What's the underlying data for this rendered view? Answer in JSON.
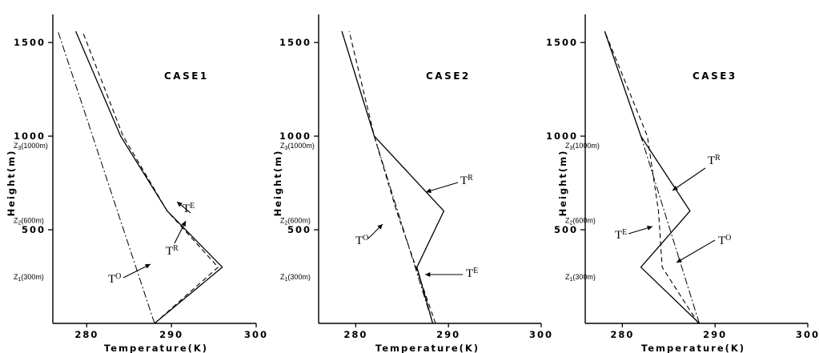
{
  "chart_data": [
    {
      "type": "line",
      "title": "CASE1",
      "xlabel": "Temperature(K)",
      "ylabel": "Height(m)",
      "xlim": [
        276,
        300
      ],
      "ylim": [
        0,
        1650
      ],
      "xticks": [
        280,
        290,
        300
      ],
      "yticks": [
        500,
        1000,
        1500
      ],
      "level_labels": [
        {
          "text": "Z3(1000m)",
          "y": 1000
        },
        {
          "text": "Z2(600m)",
          "y": 600
        },
        {
          "text": "Z1(300m)",
          "y": 300
        }
      ],
      "series": [
        {
          "name": "TR",
          "style": "solid",
          "x": [
            288,
            296,
            289.5,
            284,
            278.7
          ],
          "y": [
            0,
            300,
            600,
            1000,
            1560
          ]
        },
        {
          "name": "TE",
          "style": "dashed",
          "x": [
            288,
            295.5,
            289.5,
            284.3,
            279.5
          ],
          "y": [
            0,
            300,
            600,
            1000,
            1560
          ]
        },
        {
          "name": "TO",
          "style": "dashdot",
          "x": [
            288,
            276.6
          ],
          "y": [
            0,
            1560
          ]
        }
      ],
      "annotations": [
        {
          "series": "TE",
          "main": "T",
          "sup": "E"
        },
        {
          "series": "TR",
          "main": "T",
          "sup": "R"
        },
        {
          "series": "TO",
          "main": "T",
          "sup": "O"
        }
      ]
    },
    {
      "type": "line",
      "title": "CASE2",
      "xlabel": "Temperature(K)",
      "ylabel": "Height(m)",
      "xlim": [
        276,
        300
      ],
      "ylim": [
        0,
        1650
      ],
      "xticks": [
        280,
        290,
        300
      ],
      "yticks": [
        500,
        1000,
        1500
      ],
      "level_labels": [
        {
          "text": "Z3(1000m)",
          "y": 1000
        },
        {
          "text": "Z2(600m)",
          "y": 600
        },
        {
          "text": "Z1(300m)",
          "y": 300
        }
      ],
      "series": [
        {
          "name": "TR",
          "style": "solid",
          "x": [
            288.3,
            286.6,
            289.5,
            282,
            278.5
          ],
          "y": [
            0,
            300,
            600,
            1000,
            1560
          ]
        },
        {
          "name": "TE",
          "style": "dashed",
          "x": [
            288.6,
            286.5,
            284.4,
            282,
            279.3
          ],
          "y": [
            0,
            300,
            600,
            1000,
            1560
          ]
        },
        {
          "name": "TO",
          "style": "dashdot",
          "x": [
            288.3,
            282,
            278.5
          ],
          "y": [
            0,
            1000,
            1560
          ]
        }
      ],
      "annotations": [
        {
          "series": "TR",
          "main": "T",
          "sup": "R"
        },
        {
          "series": "TO",
          "main": "T",
          "sup": "O"
        },
        {
          "series": "TE",
          "main": "T",
          "sup": "E"
        }
      ]
    },
    {
      "type": "line",
      "title": "CASE3",
      "xlabel": "Temperature(K)",
      "ylabel": "Height(m)",
      "xlim": [
        276,
        300
      ],
      "ylim": [
        0,
        1650
      ],
      "xticks": [
        280,
        290,
        300
      ],
      "yticks": [
        500,
        1000,
        1500
      ],
      "level_labels": [
        {
          "text": "Z3(1000m)",
          "y": 1000
        },
        {
          "text": "Z2(600m)",
          "y": 600
        },
        {
          "text": "Z1(300m)",
          "y": 300
        }
      ],
      "series": [
        {
          "name": "TR",
          "style": "solid",
          "x": [
            288.3,
            282,
            287.3,
            282,
            278.1
          ],
          "y": [
            0,
            300,
            600,
            1000,
            1560
          ]
        },
        {
          "name": "TE",
          "style": "dashed",
          "x": [
            288.2,
            284.3,
            283.9,
            282.7,
            278.1
          ],
          "y": [
            0,
            300,
            600,
            1000,
            1560
          ]
        },
        {
          "name": "TO",
          "style": "dashdot",
          "x": [
            288.3,
            282,
            278.1
          ],
          "y": [
            0,
            1000,
            1560
          ]
        }
      ],
      "annotations": [
        {
          "series": "TR",
          "main": "T",
          "sup": "R"
        },
        {
          "series": "TE",
          "main": "T",
          "sup": "E"
        },
        {
          "series": "TO",
          "main": "T",
          "sup": "O"
        }
      ]
    }
  ]
}
